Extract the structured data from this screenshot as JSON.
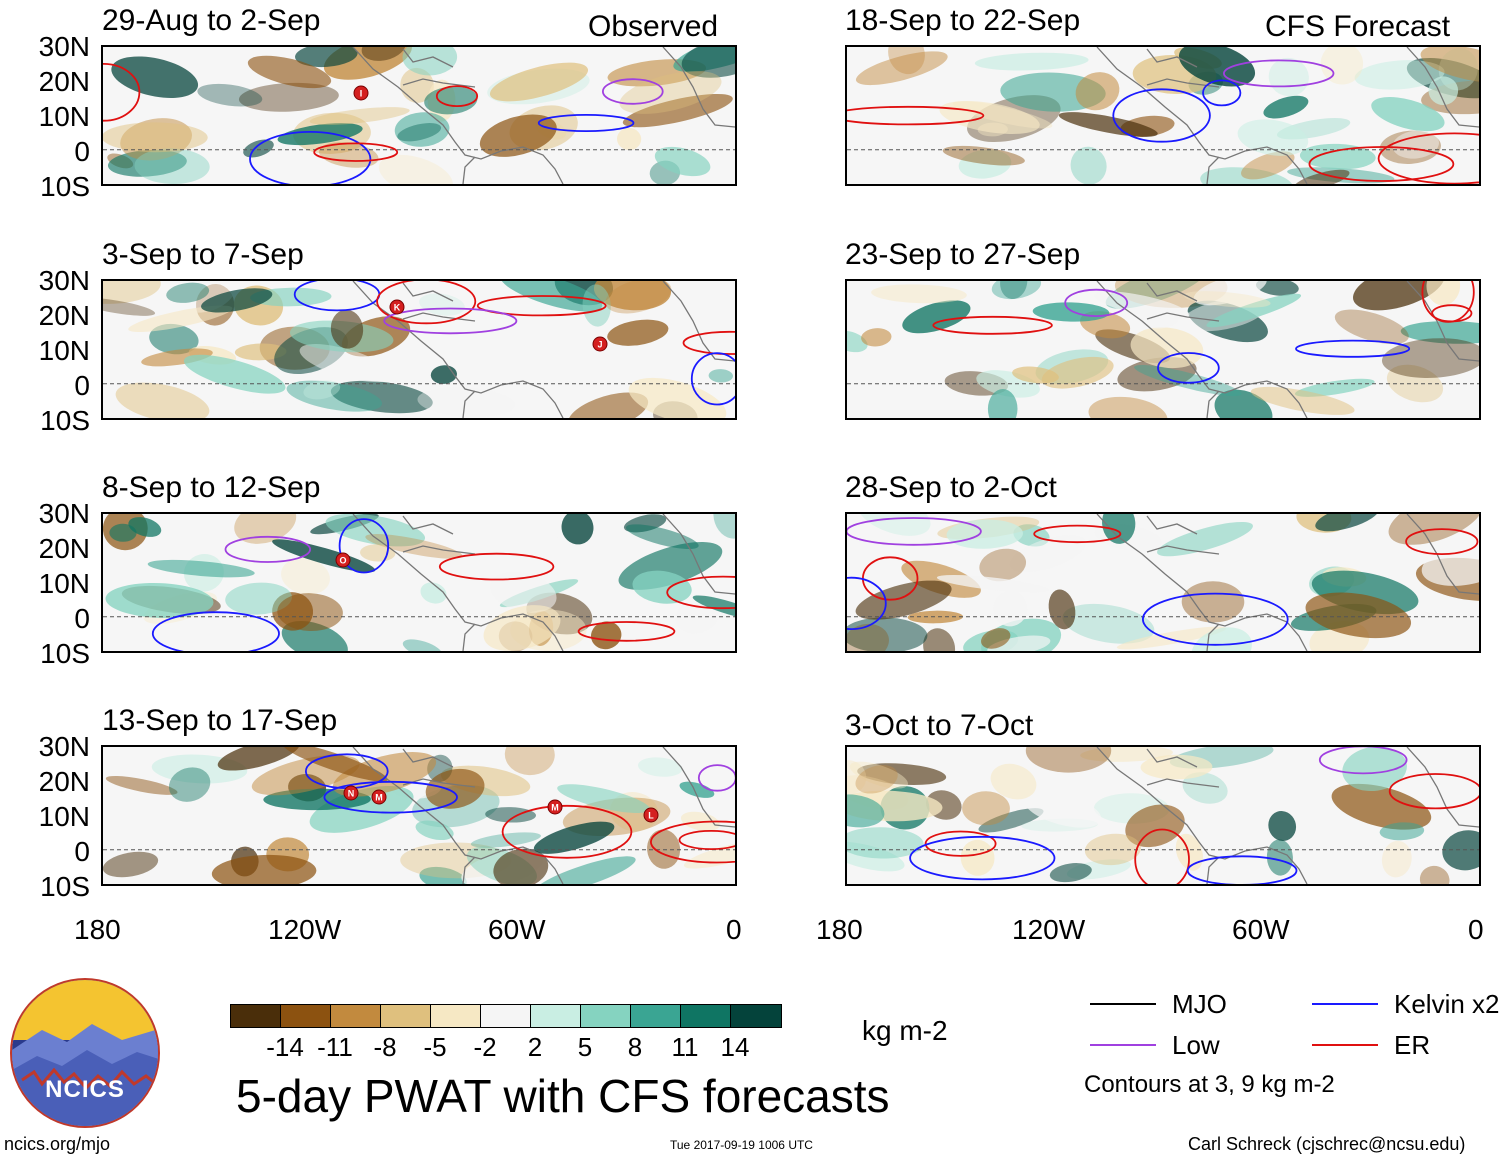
{
  "column_labels": {
    "observed": "Observed",
    "forecast": "CFS Forecast"
  },
  "observed_panels": [
    {
      "title": "29-Aug to 2-Sep",
      "storms": [
        "I"
      ]
    },
    {
      "title": "3-Sep to 7-Sep",
      "storms": [
        "K",
        "J"
      ]
    },
    {
      "title": "8-Sep to 12-Sep",
      "storms": [
        "O"
      ]
    },
    {
      "title": "13-Sep to 17-Sep",
      "storms": [
        "N",
        "M",
        "M",
        "L"
      ]
    }
  ],
  "forecast_panels": [
    {
      "title": "18-Sep to 22-Sep"
    },
    {
      "title": "23-Sep to 27-Sep"
    },
    {
      "title": "28-Sep to 2-Oct"
    },
    {
      "title": "3-Oct to 7-Oct"
    }
  ],
  "lat_labels": [
    "30N",
    "20N",
    "10N",
    "0",
    "10S"
  ],
  "lon_labels": [
    "180",
    "120W",
    "60W",
    "0"
  ],
  "colorbar": {
    "colors": [
      "#4a2e0a",
      "#8c5210",
      "#c28a3e",
      "#dfc07e",
      "#f6e8c4",
      "#f5f5f5",
      "#c9eee3",
      "#85d3c0",
      "#3aa593",
      "#0f7563",
      "#04433b"
    ],
    "ticks": [
      "-14",
      "-11",
      "-8",
      "-5",
      "-2",
      "2",
      "5",
      "8",
      "11",
      "14"
    ],
    "units": "kg m-2"
  },
  "title": "5-day PWAT with CFS forecasts",
  "legend": [
    {
      "label": "MJO",
      "color": "#000000"
    },
    {
      "label": "Kelvin x2",
      "color": "#1a1aff"
    },
    {
      "label": "Low",
      "color": "#a040e0"
    },
    {
      "label": "ER",
      "color": "#e01010"
    }
  ],
  "contour_note": "Contours at 3, 9 kg m-2",
  "logo_text": "NCICS",
  "footer": {
    "website": "ncics.org/mjo",
    "timestamp": "Tue 2017-09-19 1006 UTC",
    "credit": "Carl Schreck (cjschrec@ncsu.edu)"
  }
}
